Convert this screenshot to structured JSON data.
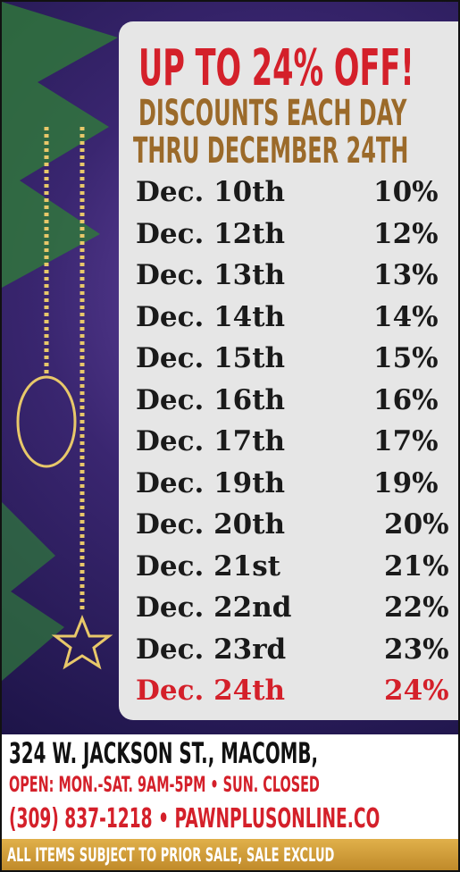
{
  "header": {
    "title": "UP TO 24% OFF!",
    "subtitle_1": "DISCOUNTS EACH DAY",
    "subtitle_2": "THRU DECEMBER 24TH"
  },
  "schedule": {
    "rows": [
      [
        "Dec. 10th",
        "10%"
      ],
      [
        "Dec. 12th",
        "12%"
      ],
      [
        "Dec. 13th",
        "13%"
      ],
      [
        "Dec. 14th",
        "14%"
      ],
      [
        "Dec. 15th",
        "15%"
      ],
      [
        "Dec. 16th",
        "16%"
      ],
      [
        "Dec. 17th",
        "17%"
      ],
      [
        "Dec. 19th",
        "19%"
      ],
      [
        "Dec. 20th",
        "20%"
      ],
      [
        "Dec. 21st",
        "21%"
      ],
      [
        "Dec. 22nd",
        "22%"
      ],
      [
        "Dec. 23rd",
        "23%"
      ],
      [
        "Dec. 24th",
        "24%"
      ]
    ]
  },
  "footer": {
    "address": "324 W. JACKSON ST., MACOMB,",
    "hours": "OPEN: MON.-SAT. 9AM-5PM • SUN. CLOSED",
    "contact": "(309) 837-1218 • PAWNPLUSONLINE.CO",
    "disclaimer": "ALL ITEMS SUBJECT TO PRIOR SALE, SALE EXCLUD"
  }
}
